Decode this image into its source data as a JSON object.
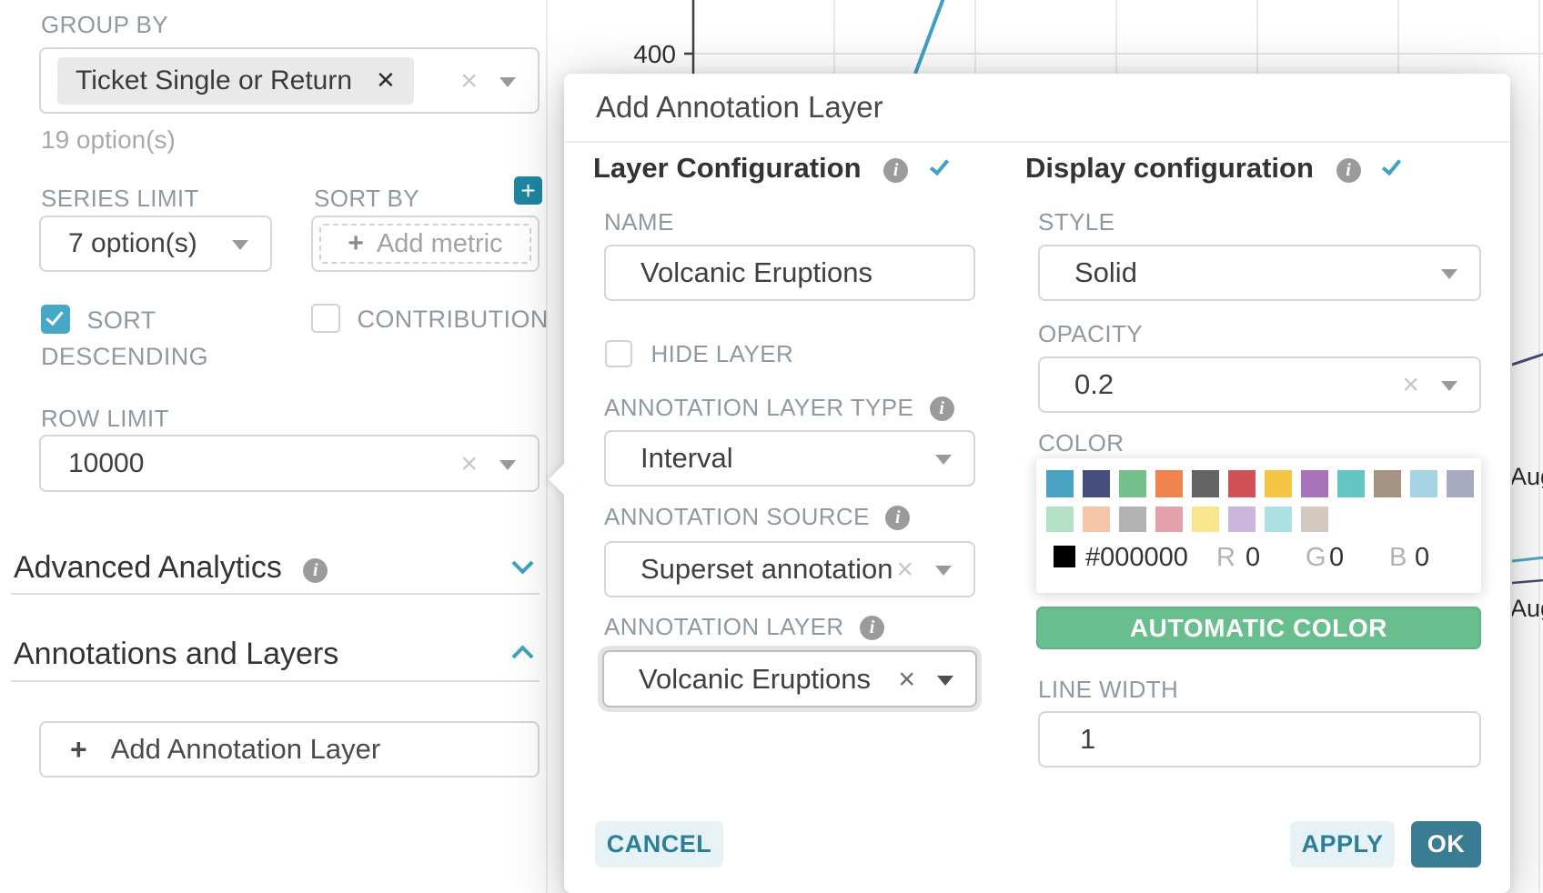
{
  "left_panel": {
    "group_by": {
      "label": "GROUP BY",
      "tag": "Ticket Single or Return",
      "helper": "19 option(s)"
    },
    "series_limit": {
      "label": "SERIES LIMIT",
      "value": "7 option(s)"
    },
    "sort_by": {
      "label": "SORT BY",
      "placeholder": "Add metric"
    },
    "sort_descending": {
      "label": "SORT DESCENDING",
      "checked": true
    },
    "contribution": {
      "label": "CONTRIBUTION",
      "checked": false
    },
    "row_limit": {
      "label": "ROW LIMIT",
      "value": "10000"
    },
    "sections": [
      {
        "label": "Advanced Analytics",
        "state": "collapsed"
      },
      {
        "label": "Annotations and Layers",
        "state": "expanded"
      }
    ],
    "add_annotation_layer_button": "Add Annotation Layer"
  },
  "modal": {
    "title": "Add Annotation Layer",
    "layer_configuration": {
      "heading": "Layer Configuration",
      "name": {
        "label": "NAME",
        "value": "Volcanic Eruptions"
      },
      "hide_layer": {
        "label": "HIDE LAYER",
        "checked": false
      },
      "annotation_layer_type": {
        "label": "ANNOTATION LAYER TYPE",
        "value": "Interval"
      },
      "annotation_source": {
        "label": "ANNOTATION SOURCE",
        "value": "Superset annotation"
      },
      "annotation_layer": {
        "label": "ANNOTATION LAYER",
        "value": "Volcanic Eruptions"
      }
    },
    "display_configuration": {
      "heading": "Display configuration",
      "style": {
        "label": "STYLE",
        "value": "Solid"
      },
      "opacity": {
        "label": "OPACITY",
        "value": "0.2"
      },
      "color": {
        "label": "COLOR",
        "hex": "#000000",
        "r_label": "R",
        "r": "0",
        "g_label": "G",
        "g": "0",
        "b_label": "B",
        "b": "0",
        "swatches_row1": [
          "#4BA3C4",
          "#464F7C",
          "#75BF8B",
          "#F0824D",
          "#646464",
          "#D05158",
          "#F4C644",
          "#A973B9",
          "#64C7C3",
          "#A49381",
          "#A5D3E3",
          "#A6AABF"
        ],
        "swatches_row2": [
          "#B4E0C6",
          "#F4C6A7",
          "#B3B3B3",
          "#E4A3AC",
          "#F8E68F",
          "#CBB6DC",
          "#ACE1E4",
          "#D3C9BE"
        ]
      },
      "automatic_color_button": "AUTOMATIC COLOR",
      "line_width": {
        "label": "LINE WIDTH",
        "value": "1"
      }
    },
    "buttons": {
      "cancel": "CANCEL",
      "apply": "APPLY",
      "ok": "OK"
    }
  },
  "background_chart": {
    "y_tick": "400",
    "x_labels": [
      "Aug",
      "Aug"
    ],
    "series_colors": {
      "blue": "#3FA0C4",
      "indigo": "#454E7C",
      "cyan": "#4AA9CC"
    }
  }
}
